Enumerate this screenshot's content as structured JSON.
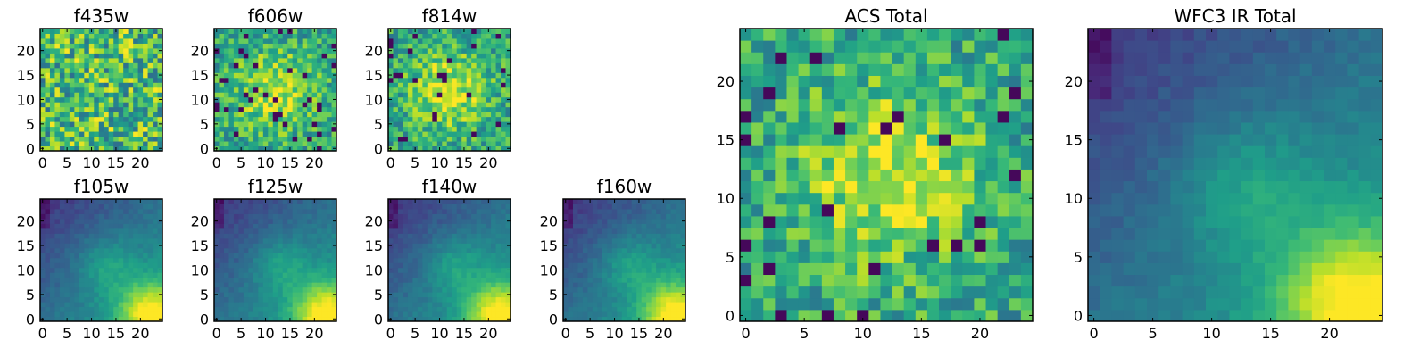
{
  "figure": {
    "colormap": "viridis",
    "colormap_stops": [
      "#440154",
      "#482878",
      "#3e4a89",
      "#31688e",
      "#26828e",
      "#1f9e89",
      "#35b779",
      "#6ece58",
      "#b5de2b",
      "#fde725"
    ]
  },
  "chart_data": [
    {
      "id": "f435w",
      "type": "heatmap",
      "title": "f435w",
      "grid_size": [
        25,
        25
      ],
      "xlim": [
        0,
        24
      ],
      "ylim": [
        0,
        24
      ],
      "xticks": [
        0,
        5,
        10,
        15,
        20
      ],
      "yticks": [
        0,
        5,
        10,
        15,
        20
      ],
      "grid": false,
      "pattern": "noise_uniform",
      "values": "not individually legible; high-contrast noise with no clear peak"
    },
    {
      "id": "f606w",
      "type": "heatmap",
      "title": "f606w",
      "grid_size": [
        25,
        25
      ],
      "xlim": [
        0,
        24
      ],
      "ylim": [
        0,
        24
      ],
      "xticks": [
        0,
        5,
        10,
        15,
        20
      ],
      "yticks": [
        0,
        5,
        10,
        15,
        20
      ],
      "grid": false,
      "pattern": "noise_with_central_peak",
      "peak": [
        12,
        12
      ],
      "values": "not individually legible; noisy with brighter center"
    },
    {
      "id": "f814w",
      "type": "heatmap",
      "title": "f814w",
      "grid_size": [
        25,
        25
      ],
      "xlim": [
        0,
        24
      ],
      "ylim": [
        0,
        24
      ],
      "xticks": [
        0,
        5,
        10,
        15,
        20
      ],
      "yticks": [
        0,
        5,
        10,
        15,
        20
      ],
      "grid": false,
      "pattern": "noise_with_central_peak",
      "peak": [
        12,
        12
      ],
      "values": "not individually legible; brighter center near (12,12)"
    },
    {
      "id": "f105w",
      "type": "heatmap",
      "title": "f105w",
      "grid_size": [
        25,
        25
      ],
      "xlim": [
        0,
        24
      ],
      "ylim": [
        0,
        24
      ],
      "xticks": [
        0,
        5,
        10,
        15,
        20
      ],
      "yticks": [
        0,
        5,
        10,
        15,
        20
      ],
      "grid": false,
      "pattern": "smooth_gradient",
      "values": "not individually legible; dark top-left, bright bottom-right"
    },
    {
      "id": "f125w",
      "type": "heatmap",
      "title": "f125w",
      "grid_size": [
        25,
        25
      ],
      "xlim": [
        0,
        24
      ],
      "ylim": [
        0,
        24
      ],
      "xticks": [
        0,
        5,
        10,
        15,
        20
      ],
      "yticks": [
        0,
        5,
        10,
        15,
        20
      ],
      "grid": false,
      "pattern": "smooth_gradient",
      "values": "not individually legible; dark top-left, bright bottom-right"
    },
    {
      "id": "f140w",
      "type": "heatmap",
      "title": "f140w",
      "grid_size": [
        25,
        25
      ],
      "xlim": [
        0,
        24
      ],
      "ylim": [
        0,
        24
      ],
      "xticks": [
        0,
        5,
        10,
        15,
        20
      ],
      "yticks": [
        0,
        5,
        10,
        15,
        20
      ],
      "grid": false,
      "pattern": "smooth_gradient",
      "values": "not individually legible; dark top-left, bright bottom-right"
    },
    {
      "id": "f160w",
      "type": "heatmap",
      "title": "f160w",
      "grid_size": [
        25,
        25
      ],
      "xlim": [
        0,
        24
      ],
      "ylim": [
        0,
        24
      ],
      "xticks": [
        0,
        5,
        10,
        15,
        20
      ],
      "yticks": [
        0,
        5,
        10,
        15,
        20
      ],
      "grid": false,
      "pattern": "smooth_gradient",
      "values": "not individually legible; dark top-left, bright bottom-right"
    },
    {
      "id": "acs_total",
      "type": "heatmap",
      "title": "ACS Total",
      "grid_size": [
        25,
        25
      ],
      "xlim": [
        0,
        24
      ],
      "ylim": [
        0,
        24
      ],
      "xticks": [
        0,
        5,
        10,
        15,
        20
      ],
      "yticks": [
        0,
        5,
        10,
        15,
        20
      ],
      "grid": false,
      "pattern": "noise_with_central_peak",
      "peak": [
        12,
        12
      ],
      "values": "not individually legible; bright band near x=12-13, y=10-14"
    },
    {
      "id": "wfc3_ir_total",
      "type": "heatmap",
      "title": "WFC3 IR Total",
      "grid_size": [
        25,
        25
      ],
      "xlim": [
        0,
        24
      ],
      "ylim": [
        0,
        24
      ],
      "xticks": [
        0,
        5,
        10,
        15,
        20
      ],
      "yticks": [
        0,
        5,
        10,
        15,
        20
      ],
      "grid": false,
      "pattern": "smooth_gradient",
      "values": "not individually legible; dark top-left, bright yellow bottom-right"
    }
  ]
}
